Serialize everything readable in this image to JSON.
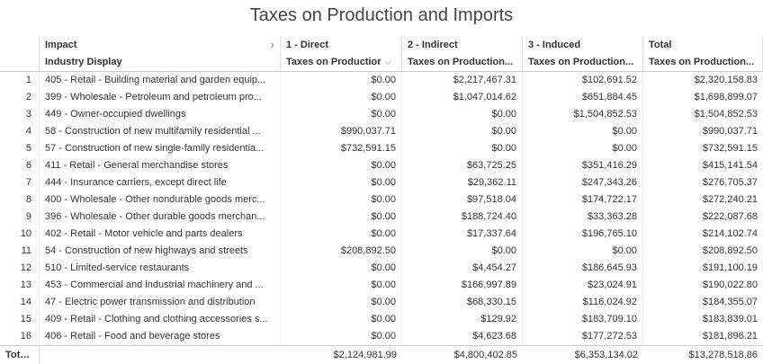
{
  "title": "Taxes on Production and Imports",
  "header": {
    "impact_label": "Impact",
    "industry_label": "Industry Display",
    "columns": [
      "1 - Direct",
      "2 - Indirect",
      "3 - Induced",
      "Total"
    ],
    "subcolumns": [
      "Taxes on Productior",
      "Taxes on Production...",
      "Taxes on Production...",
      "Taxes on Production..."
    ]
  },
  "rows": [
    {
      "n": "1",
      "industry": "405 - Retail - Building material and garden equip...",
      "direct": "$0.00",
      "indirect": "$2,217,467.31",
      "induced": "$102,691.52",
      "total": "$2,320,158.83"
    },
    {
      "n": "2",
      "industry": "399 - Wholesale - Petroleum and petroleum pro...",
      "direct": "$0.00",
      "indirect": "$1,047,014.62",
      "induced": "$651,884.45",
      "total": "$1,698,899.07"
    },
    {
      "n": "3",
      "industry": "449 - Owner-occupied dwellings",
      "direct": "$0.00",
      "indirect": "$0.00",
      "induced": "$1,504,852.53",
      "total": "$1,504,852.53"
    },
    {
      "n": "4",
      "industry": "58 - Construction of new multifamily residential ...",
      "direct": "$990,037.71",
      "indirect": "$0.00",
      "induced": "$0.00",
      "total": "$990,037.71"
    },
    {
      "n": "5",
      "industry": "57 - Construction of new single-family residentia...",
      "direct": "$732,591.15",
      "indirect": "$0.00",
      "induced": "$0.00",
      "total": "$732,591.15"
    },
    {
      "n": "6",
      "industry": "411 - Retail - General merchandise stores",
      "direct": "$0.00",
      "indirect": "$63,725.25",
      "induced": "$351,416.29",
      "total": "$415,141.54"
    },
    {
      "n": "7",
      "industry": "444 - Insurance carriers, except direct life",
      "direct": "$0.00",
      "indirect": "$29,362.11",
      "induced": "$247,343.26",
      "total": "$276,705.37"
    },
    {
      "n": "8",
      "industry": "400 - Wholesale - Other nondurable goods merc...",
      "direct": "$0.00",
      "indirect": "$97,518.04",
      "induced": "$174,722.17",
      "total": "$272,240.21"
    },
    {
      "n": "9",
      "industry": "396 - Wholesale - Other durable goods merchan...",
      "direct": "$0.00",
      "indirect": "$188,724.40",
      "induced": "$33,363.28",
      "total": "$222,087.68"
    },
    {
      "n": "10",
      "industry": "402 - Retail - Motor vehicle and parts dealers",
      "direct": "$0.00",
      "indirect": "$17,337.64",
      "induced": "$196,765.10",
      "total": "$214,102.74"
    },
    {
      "n": "11",
      "industry": "54 - Construction of new highways and streets",
      "direct": "$208,892.50",
      "indirect": "$0.00",
      "induced": "$0.00",
      "total": "$208,892.50"
    },
    {
      "n": "12",
      "industry": "510 - Limited-service restaurants",
      "direct": "$0.00",
      "indirect": "$4,454.27",
      "induced": "$186,645.93",
      "total": "$191,100.19"
    },
    {
      "n": "13",
      "industry": "453 - Commercial and industrial machinery and ...",
      "direct": "$0.00",
      "indirect": "$166,997.89",
      "induced": "$23,024.91",
      "total": "$190,022.80"
    },
    {
      "n": "14",
      "industry": "47 - Electric power transmission and distribution",
      "direct": "$0.00",
      "indirect": "$68,330.15",
      "induced": "$116,024.92",
      "total": "$184,355.07"
    },
    {
      "n": "15",
      "industry": "409 - Retail - Clothing and clothing accessories s...",
      "direct": "$0.00",
      "indirect": "$129.92",
      "induced": "$183,709.10",
      "total": "$183,839.01"
    },
    {
      "n": "16",
      "industry": "406 - Retail - Food and beverage stores",
      "direct": "$0.00",
      "indirect": "$4,623.68",
      "induced": "$177,272.53",
      "total": "$181,896.21"
    }
  ],
  "totals": {
    "label": "Totals",
    "direct": "$2,124,981.99",
    "indirect": "$4,800,402.85",
    "induced": "$6,353,134.02",
    "total": "$13,278,518.86"
  },
  "icons": {
    "expand": "chevron-right-icon",
    "sort": "sort-desc-icon"
  }
}
